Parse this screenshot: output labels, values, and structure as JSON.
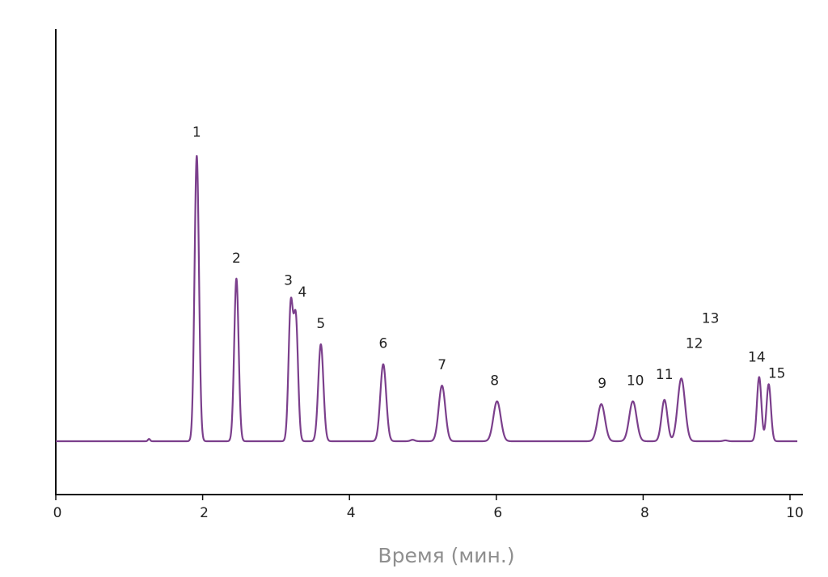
{
  "chart_data": {
    "type": "line",
    "xlabel": "Время (мин.)",
    "ylabel": "",
    "xlim": [
      0,
      10.1
    ],
    "ylim": [
      0,
      100
    ],
    "x_ticks": [
      "0",
      "2",
      "4",
      "6",
      "8",
      "10"
    ],
    "grid": false,
    "line_color": "#7b3f8c",
    "baseline": 0,
    "peaks": [
      {
        "label": "1",
        "rt": 1.92,
        "height": 100,
        "width": 0.03
      },
      {
        "label": "2",
        "rt": 2.46,
        "height": 57,
        "width": 0.03
      },
      {
        "label": "3",
        "rt": 3.2,
        "height": 47,
        "width": 0.03
      },
      {
        "label": "4",
        "rt": 3.27,
        "height": 42,
        "width": 0.03
      },
      {
        "label": "5",
        "rt": 3.61,
        "height": 34,
        "width": 0.035
      },
      {
        "label": "6",
        "rt": 4.46,
        "height": 27,
        "width": 0.04
      },
      {
        "label": "7",
        "rt": 5.26,
        "height": 19.5,
        "width": 0.045
      },
      {
        "label": "8",
        "rt": 6.01,
        "height": 14,
        "width": 0.05
      },
      {
        "label": "9",
        "rt": 7.43,
        "height": 13,
        "width": 0.05
      },
      {
        "label": "10",
        "rt": 7.86,
        "height": 14,
        "width": 0.05
      },
      {
        "label": "11",
        "rt": 8.29,
        "height": 14.5,
        "width": 0.04
      },
      {
        "label": "12",
        "rt": 8.52,
        "height": 22,
        "width": 0.05
      },
      {
        "label": "13",
        "rt": 8.52,
        "height": 22,
        "width": 0.0
      },
      {
        "label": "14",
        "rt": 9.58,
        "height": 22.5,
        "width": 0.03
      },
      {
        "label": "15",
        "rt": 9.71,
        "height": 20,
        "width": 0.03
      }
    ],
    "minor_bumps": [
      {
        "rt": 1.27,
        "height": 0.8,
        "width": 0.015
      },
      {
        "rt": 4.86,
        "height": 0.5,
        "width": 0.03
      },
      {
        "rt": 9.12,
        "height": 0.3,
        "width": 0.03
      }
    ]
  }
}
